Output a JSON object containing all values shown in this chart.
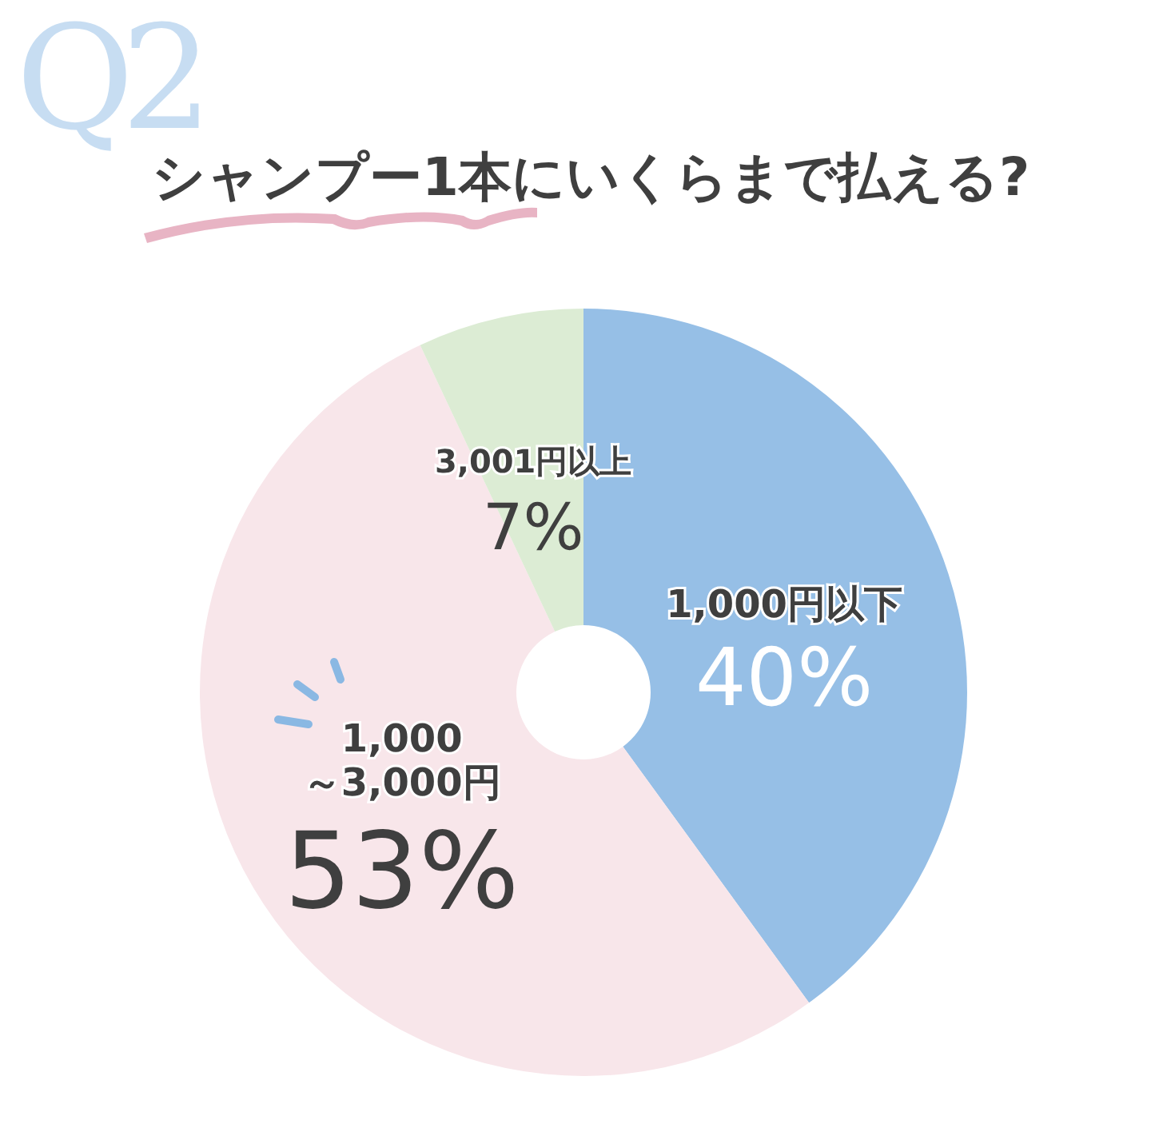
{
  "chart_data": {
    "type": "donut",
    "title": "シャンプー1本にいくらまで払える?",
    "annotations": [
      "Q2"
    ],
    "categories": [
      "1,000円以下",
      "1,000\n～3,000円",
      "3,001円以上"
    ],
    "values": [
      40,
      53,
      7
    ],
    "colors": [
      "#96bfe6",
      "#f8e6ea",
      "#dcecd4"
    ],
    "value_labels": [
      "40%",
      "53%",
      "7%"
    ]
  }
}
